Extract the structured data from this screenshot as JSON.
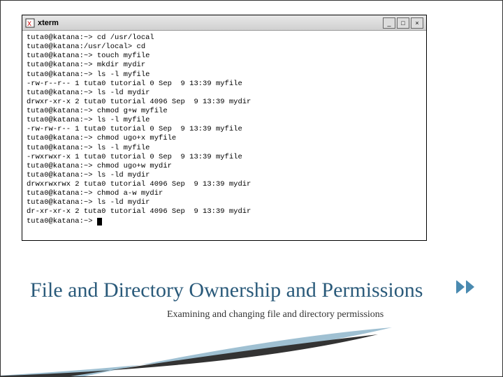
{
  "window": {
    "title": "xterm",
    "controls": {
      "min": "_",
      "max": "□",
      "close": "×"
    }
  },
  "terminal": {
    "lines": [
      "tuta0@katana:~> cd /usr/local",
      "tuta0@katana:/usr/local> cd",
      "tuta0@katana:~> touch myfile",
      "tuta0@katana:~> mkdir mydir",
      "tuta0@katana:~> ls -l myfile",
      "-rw-r--r-- 1 tuta0 tutorial 0 Sep  9 13:39 myfile",
      "tuta0@katana:~> ls -ld mydir",
      "drwxr-xr-x 2 tuta0 tutorial 4096 Sep  9 13:39 mydir",
      "tuta0@katana:~> chmod g+w myfile",
      "tuta0@katana:~> ls -l myfile",
      "-rw-rw-r-- 1 tuta0 tutorial 0 Sep  9 13:39 myfile",
      "tuta0@katana:~> chmod ugo+x myfile",
      "tuta0@katana:~> ls -l myfile",
      "-rwxrwxr-x 1 tuta0 tutorial 0 Sep  9 13:39 myfile",
      "tuta0@katana:~> chmod ugo+w mydir",
      "tuta0@katana:~> ls -ld mydir",
      "drwxrwxrwx 2 tuta0 tutorial 4096 Sep  9 13:39 mydir",
      "tuta0@katana:~> chmod a-w mydir",
      "tuta0@katana:~> ls -ld mydir",
      "dr-xr-xr-x 2 tuta0 tutorial 4096 Sep  9 13:39 mydir"
    ],
    "prompt": "tuta0@katana:~> "
  },
  "slide": {
    "title": "File and Directory Ownership and Permissions",
    "subtitle": "Examining and changing file and directory permissions"
  },
  "colors": {
    "title_color": "#2a5a7a",
    "chevron_color": "#4a8ab0",
    "swoosh_dark": "#333333",
    "swoosh_light": "#87b0c7"
  }
}
